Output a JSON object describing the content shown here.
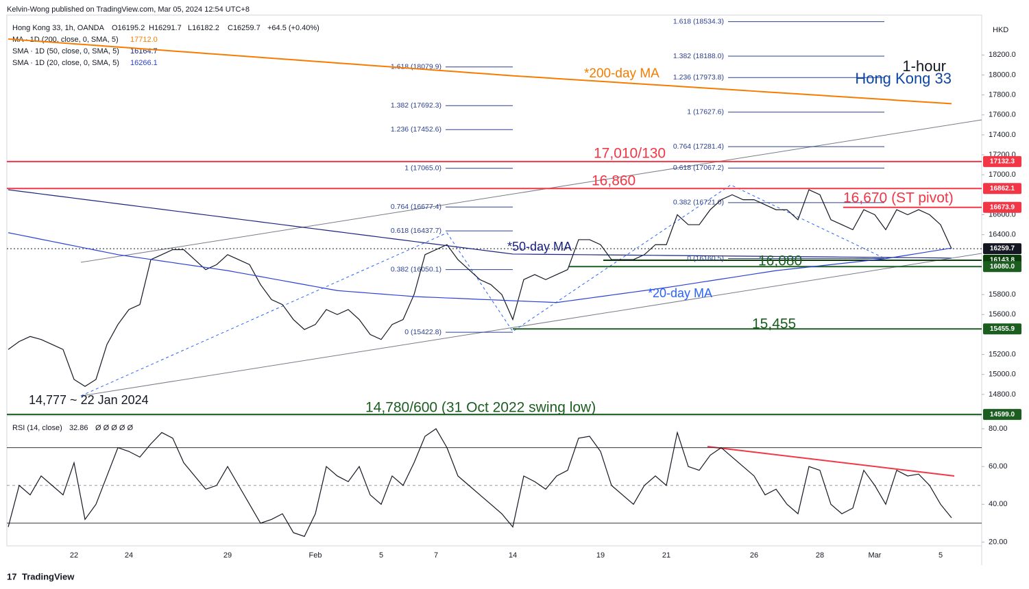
{
  "header": {
    "publisher": "Kelvin-Wong published on TradingView.com, Mar 05, 2024 12:54 UTC+8",
    "symbol": "Hong Kong 33, 1h, OANDA",
    "open": "O16195.2",
    "high": "H16291.7",
    "low": "L16182.2",
    "close": "C16259.7",
    "change": "+64.5 (+0.40%)",
    "currency": "HKD"
  },
  "chart_data": [
    {
      "type": "line",
      "title": "1-hour",
      "subtitle": "Hong Kong 33",
      "categories": [
        null,
        null,
        null,
        null,
        null,
        null,
        "22",
        null,
        null,
        null,
        null,
        "24",
        null,
        null,
        null,
        null,
        null,
        null,
        null,
        null,
        "29",
        null,
        null,
        null,
        null,
        null,
        null,
        null,
        "Feb",
        null,
        null,
        null,
        null,
        null,
        "5",
        null,
        null,
        null,
        null,
        "7",
        null,
        null,
        null,
        null,
        null,
        null,
        "14",
        null,
        null,
        null,
        null,
        null,
        null,
        null,
        "19",
        null,
        null,
        null,
        null,
        null,
        "21",
        null,
        null,
        null,
        null,
        null,
        null,
        null,
        "26",
        null,
        null,
        null,
        null,
        null,
        "28",
        null,
        null,
        null,
        null,
        "Mar",
        null,
        null,
        null,
        null,
        null,
        "5",
        null
      ],
      "series": [
        {
          "name": "Hong Kong 33, 1h, OANDA",
          "color": "#131722",
          "values": [
            15250,
            15330,
            15380,
            15350,
            15300,
            15250,
            14950,
            14880,
            14950,
            15300,
            15500,
            15650,
            15700,
            16150,
            16200,
            16250,
            16250,
            16150,
            16050,
            16100,
            16200,
            16150,
            16100,
            15900,
            15750,
            15700,
            15550,
            15450,
            15500,
            15650,
            15600,
            15650,
            15550,
            15400,
            15350,
            15500,
            15550,
            15800,
            16200,
            16250,
            16300,
            16150,
            16050,
            15950,
            15900,
            15800,
            15550,
            15950,
            16000,
            15950,
            16000,
            16050,
            16350,
            16350,
            16300,
            16150,
            16150,
            16150,
            16200,
            16300,
            16300,
            16600,
            16500,
            16500,
            16650,
            16750,
            16800,
            16750,
            16750,
            16700,
            16650,
            16650,
            16550,
            16850,
            16800,
            16550,
            16500,
            16450,
            16650,
            16600,
            16450,
            16650,
            16600,
            16650,
            16600,
            16500,
            16259.7
          ]
        },
        {
          "name": "MA · 1D (200, close, 0, SMA, 5)",
          "legend_value": "17712.0",
          "color": "#f57c00",
          "values": [
            18360,
            18352,
            18344,
            18336,
            18328,
            18320,
            18312,
            18304,
            18296,
            18288,
            18280,
            18272,
            18264,
            18256,
            18248,
            18240,
            18232,
            18224,
            18216,
            18208,
            18200,
            18192,
            18184,
            18176,
            18168,
            18160,
            18152,
            18144,
            18136,
            18128,
            18120,
            18112,
            18104,
            18096,
            18088,
            18080,
            18072,
            18064,
            18056,
            18048,
            18040,
            18032,
            18024,
            18016,
            18008,
            18000,
            17992,
            17985,
            17978,
            17971,
            17964,
            17957,
            17950,
            17943,
            17936,
            17929,
            17922,
            17915,
            17908,
            17901,
            17894,
            17887,
            17880,
            17873,
            17866,
            17859,
            17852,
            17845,
            17838,
            17831,
            17824,
            17817,
            17810,
            17803,
            17796,
            17789,
            17782,
            17775,
            17768,
            17761,
            17754,
            17747,
            17740,
            17733,
            17726,
            17719,
            17712.0
          ]
        },
        {
          "name": "SMA · 1D (50, close, 0, SMA, 5)",
          "legend_value": "16164.7",
          "color": "#1a237e",
          "values": [
            16850,
            16836,
            16822,
            16808,
            16794,
            16780,
            16766,
            16752,
            16738,
            16724,
            16710,
            16696,
            16682,
            16668,
            16654,
            16640,
            16626,
            16612,
            16598,
            16584,
            16570,
            16556,
            16542,
            16528,
            16514,
            16500,
            16486,
            16472,
            16458,
            16444,
            16430,
            16416,
            16402,
            16388,
            16374,
            16360,
            16346,
            16332,
            16318,
            16304,
            16290,
            16276,
            16262,
            16248,
            16234,
            16220,
            16206,
            16205,
            16204,
            16203,
            16202,
            16201,
            16200,
            16199,
            16198,
            16197,
            16196,
            16195,
            16194,
            16193,
            16192,
            16191,
            16190,
            16189,
            16188,
            16187,
            16186,
            16185,
            16184,
            16183,
            16182,
            16181,
            16180,
            16179,
            16178,
            16177,
            16176,
            16175,
            16174,
            16173,
            16172,
            16171,
            16170,
            16169,
            16168,
            16167,
            16164.7
          ]
        },
        {
          "name": "SMA · 1D (20, close, 0, SMA, 5)",
          "legend_value": "16266.1",
          "color": "#2941d6",
          "values": [
            16420,
            16398,
            16376,
            16354,
            16332,
            16310,
            16288,
            16266,
            16244,
            16222,
            16200,
            16184,
            16168,
            16152,
            16136,
            16120,
            16104,
            16088,
            16072,
            16056,
            16040,
            16020,
            16000,
            15980,
            15960,
            15940,
            15920,
            15900,
            15880,
            15860,
            15840,
            15831,
            15823,
            15814,
            15806,
            15797,
            15789,
            15780,
            15775,
            15771,
            15766,
            15762,
            15757,
            15752,
            15748,
            15743,
            15738,
            15734,
            15729,
            15725,
            15720,
            15735,
            15750,
            15765,
            15780,
            15795,
            15810,
            15825,
            15840,
            15855,
            15870,
            15887,
            15904,
            15921,
            15938,
            15955,
            15972,
            15989,
            16006,
            16023,
            16040,
            16052,
            16064,
            16076,
            16088,
            16100,
            16112,
            16124,
            16136,
            16148,
            16160,
            16178,
            16195,
            16213,
            16231,
            16248,
            16266.1
          ]
        }
      ],
      "ylim": [
        14600,
        18600
      ],
      "yticks": [
        {
          "value": 18200,
          "label": "18200.0"
        },
        {
          "value": 18000,
          "label": "18000.0"
        },
        {
          "value": 17800,
          "label": "17800.0"
        },
        {
          "value": 17600,
          "label": "17600.0"
        },
        {
          "value": 17400,
          "label": "17400.0"
        },
        {
          "value": 17200,
          "label": "17200.0"
        },
        {
          "value": 17000,
          "label": "17000.0"
        },
        {
          "value": 16600,
          "label": "16600.0"
        },
        {
          "value": 16400,
          "label": "16400.0"
        },
        {
          "value": 15800,
          "label": "15800.0"
        },
        {
          "value": 15600,
          "label": "15600.0"
        },
        {
          "value": 15200,
          "label": "15200.0"
        },
        {
          "value": 15000,
          "label": "15000.0"
        },
        {
          "value": 14800,
          "label": "14800.0"
        }
      ],
      "levels": [
        {
          "value": 17132.3,
          "color": "#f23645"
        },
        {
          "value": 16862.1,
          "color": "#f23645"
        },
        {
          "value": 16673.9,
          "color": "#f23645"
        },
        {
          "value": 16259.7,
          "color": "#131722"
        },
        {
          "value": 16143.8,
          "color": "#0b3d0b"
        },
        {
          "value": 16080.0,
          "label": "16080.0",
          "color": "#1b5e20"
        },
        {
          "value": 15455.9,
          "color": "#1b5e20"
        },
        {
          "value": 14599.0,
          "label": "14599.0",
          "color": "#1b5e20"
        }
      ],
      "fib_left": [
        {
          "value": 18079.9,
          "label": "1.618 (18079.9)"
        },
        {
          "value": 17692.3,
          "label": "1.382 (17692.3)"
        },
        {
          "value": 17452.6,
          "label": "1.236 (17452.6)"
        },
        {
          "value": 17065.0,
          "label": "1 (17065.0)"
        },
        {
          "value": 16677.4,
          "label": "0.764 (16677.4)"
        },
        {
          "value": 16437.7,
          "label": "0.618 (16437.7)"
        },
        {
          "value": 16050.1,
          "label": "0.382 (16050.1)"
        },
        {
          "value": 15422.8,
          "label": "0 (15422.8)"
        }
      ],
      "fib_right": [
        {
          "value": 18534.3,
          "label": "1.618 (18534.3)"
        },
        {
          "value": 18188.0,
          "label": "1.382 (18188.0)"
        },
        {
          "value": 17973.8,
          "label": "1.236 (17973.8)"
        },
        {
          "value": 17627.6,
          "label": "1 (17627.6)"
        },
        {
          "value": 17281.4,
          "label": "0.764 (17281.4)"
        },
        {
          "value": 17067.2,
          "label": "0.618 (17067.2)"
        },
        {
          "value": 16721.0,
          "label": "0.382 (16721.0)"
        },
        {
          "value": 16160.5,
          "label": "0 (16160.5)"
        }
      ],
      "annotations": [
        "17,010/130",
        "16,860",
        "16,670 (ST pivot)",
        "16,080",
        "15,455",
        "14,780/600 (31 Oct 2022 swing low)",
        "14,777 ~ 22 Jan 2024",
        "*200-day MA",
        "*50-day MA",
        "*20-day MA"
      ]
    },
    {
      "type": "line",
      "series": [
        {
          "name": "RSI (14, close)",
          "color": "#131722",
          "values": [
            28,
            50,
            45,
            55,
            50,
            45,
            62,
            32,
            40,
            55,
            70,
            68,
            65,
            72,
            78,
            75,
            62,
            55,
            48,
            50,
            60,
            50,
            40,
            30,
            32,
            35,
            25,
            23,
            35,
            60,
            55,
            52,
            60,
            45,
            40,
            55,
            50,
            62,
            76,
            80,
            70,
            55,
            50,
            45,
            40,
            35,
            28,
            55,
            52,
            48,
            55,
            58,
            75,
            76,
            68,
            50,
            45,
            40,
            50,
            55,
            50,
            78,
            60,
            58,
            66,
            70,
            65,
            60,
            55,
            45,
            48,
            40,
            35,
            60,
            58,
            40,
            35,
            38,
            58,
            50,
            40,
            58,
            55,
            56,
            50,
            40,
            32.86
          ]
        }
      ],
      "extras": "Ø Ø Ø Ø Ø",
      "ylim": [
        18,
        84
      ],
      "yticks": [
        {
          "value": 80,
          "label": "80.00"
        },
        {
          "value": 60,
          "label": "60.00"
        },
        {
          "value": 40,
          "label": "40.00"
        },
        {
          "value": 20,
          "label": "20.00"
        }
      ],
      "bands": [
        70,
        30
      ],
      "midline": 50
    }
  ],
  "footer": {
    "brand": "TradingView"
  }
}
